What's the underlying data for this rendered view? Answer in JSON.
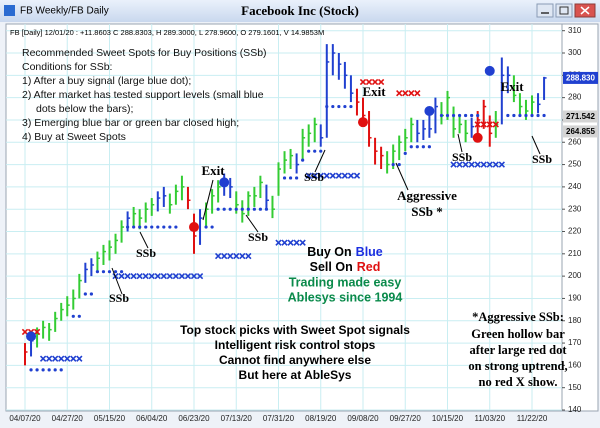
{
  "window_title": "FB Weekly/FB Daily",
  "chart_data": {
    "type": "ohlc",
    "title": "Facebook Inc (Stock)",
    "subtitle": "FB [Daily] 12/01/20 : +11.8603 C 288.8303, H 289.3000, L 278.9600, O 279.1601, V 14.9853M",
    "categories": [
      "04/07/20",
      null,
      null,
      null,
      null,
      null,
      null,
      "04/27/20",
      null,
      null,
      null,
      null,
      null,
      null,
      "05/15/20",
      null,
      null,
      null,
      null,
      null,
      null,
      "06/04/20",
      null,
      null,
      null,
      null,
      null,
      null,
      "06/23/20",
      null,
      null,
      null,
      null,
      null,
      null,
      "07/13/20",
      null,
      null,
      null,
      null,
      null,
      null,
      "07/31/20",
      null,
      null,
      null,
      null,
      null,
      null,
      "08/19/20",
      null,
      null,
      null,
      null,
      null,
      null,
      "09/08/20",
      null,
      null,
      null,
      null,
      null,
      null,
      "09/27/20",
      null,
      null,
      null,
      null,
      null,
      null,
      "10/15/20",
      null,
      null,
      null,
      null,
      null,
      null,
      "11/03/20",
      null,
      null,
      null,
      null,
      null,
      null,
      "11/22/20",
      null,
      null
    ],
    "ylim": [
      140,
      313
    ],
    "yticks": [
      140,
      150,
      160,
      170,
      180,
      190,
      200,
      210,
      220,
      230,
      240,
      250,
      260,
      270,
      280,
      290,
      300,
      310
    ],
    "grid": true,
    "grid_color": "#c9eef2",
    "bars": {
      "high": [
        170,
        174,
        177,
        180,
        179,
        184,
        188,
        191,
        194,
        201,
        206,
        208,
        211,
        214,
        216,
        219,
        225,
        229,
        231,
        230,
        233,
        235,
        238,
        240,
        237,
        241,
        245,
        240,
        228,
        230,
        233,
        239,
        243,
        246,
        244,
        238,
        234,
        238,
        240,
        245,
        241,
        236,
        251,
        256,
        257,
        255,
        266,
        268,
        271,
        268,
        304,
        304,
        300,
        296,
        290,
        284,
        280,
        274,
        262,
        258,
        256,
        259,
        263,
        266,
        271,
        270,
        270,
        272,
        280,
        278,
        283,
        276,
        272,
        270,
        271,
        274,
        279,
        272,
        274,
        298,
        294,
        290,
        282,
        279,
        281,
        282,
        289.3
      ],
      "low": [
        160,
        164,
        168,
        172,
        171,
        175,
        180,
        182,
        185,
        190,
        197,
        200,
        202,
        205,
        207,
        210,
        215,
        220,
        222,
        221,
        224,
        227,
        229,
        231,
        228,
        232,
        234,
        230,
        210,
        214,
        222,
        228,
        233,
        236,
        235,
        228,
        224,
        227,
        231,
        235,
        230,
        226,
        236,
        246,
        248,
        246,
        252,
        258,
        260,
        258,
        262,
        290,
        288,
        284,
        278,
        272,
        268,
        258,
        250,
        248,
        246,
        248,
        252,
        256,
        260,
        260,
        261,
        262,
        264,
        268,
        270,
        262,
        264,
        260,
        262,
        264,
        266,
        258,
        262,
        268,
        282,
        278,
        272,
        270,
        272,
        273,
        278.96
      ],
      "close": [
        166,
        171,
        174,
        177,
        176,
        181,
        185,
        187,
        190,
        198,
        203,
        205,
        208,
        211,
        213,
        216,
        222,
        226,
        228,
        226,
        230,
        232,
        235,
        236,
        232,
        238,
        240,
        234,
        218,
        226,
        230,
        236,
        240,
        242,
        240,
        232,
        228,
        236,
        236,
        242,
        234,
        230,
        248,
        252,
        254,
        250,
        262,
        264,
        268,
        262,
        296,
        300,
        295,
        290,
        282,
        278,
        272,
        262,
        256,
        254,
        250,
        256,
        260,
        262,
        268,
        264,
        266,
        266,
        276,
        272,
        280,
        266,
        268,
        264,
        267,
        270,
        276,
        264,
        268,
        290,
        290,
        281,
        276,
        274,
        278,
        277,
        288.83
      ],
      "colors": [
        "#e01010",
        "#2040d0",
        "#33cc33",
        "#33cc33",
        "#33cc33",
        "#33cc33",
        "#33cc33",
        "#33cc33",
        "#33cc33",
        "#33cc33",
        "#2040d0",
        "#2040d0",
        "#33cc33",
        "#33cc33",
        "#33cc33",
        "#33cc33",
        "#33cc33",
        "#2040d0",
        "#33cc33",
        "#33cc33",
        "#33cc33",
        "#33cc33",
        "#2040d0",
        "#2040d0",
        "#33cc33",
        "#33cc33",
        "#33cc33",
        "#e01010",
        "#e01010",
        "#2040d0",
        "#33cc33",
        "#33cc33",
        "#33cc33",
        "#2040d0",
        "#2040d0",
        "#33cc33",
        "#33cc33",
        "#33cc33",
        "#33cc33",
        "#33cc33",
        "#2040d0",
        "#33cc33",
        "#33cc33",
        "#33cc33",
        "#33cc33",
        "#2040d0",
        "#33cc33",
        "#33cc33",
        "#33cc33",
        "#2040d0",
        "#2040d0",
        "#2040d0",
        "#2040d0",
        "#2040d0",
        "#2040d0",
        "#e01010",
        "#e01010",
        "#e01010",
        "#e01010",
        "#e01010",
        "#33cc33",
        "#33cc33",
        "#33cc33",
        "#33cc33",
        "#33cc33",
        "#2040d0",
        "#2040d0",
        "#2040d0",
        "#2040d0",
        "#33cc33",
        "#33cc33",
        "#33cc33",
        "#33cc33",
        "#33cc33",
        "#2040d0",
        "#e01010",
        "#e01010",
        "#e01010",
        "#33cc33",
        "#2040d0",
        "#2040d0",
        "#33cc33",
        "#33cc33",
        "#33cc33",
        "#33cc33",
        "#2040d0",
        "#2040d0"
      ]
    },
    "support": {
      "color": "#2040d0",
      "values": [
        null,
        158,
        158,
        158,
        158,
        158,
        158,
        null,
        182,
        182,
        192,
        192,
        202,
        202,
        202,
        202,
        202,
        222,
        222,
        222,
        222,
        222,
        222,
        222,
        222,
        222,
        null,
        null,
        null,
        null,
        222,
        222,
        230,
        230,
        230,
        230,
        230,
        230,
        230,
        230,
        230,
        null,
        null,
        244,
        244,
        244,
        252,
        256,
        256,
        256,
        276,
        276,
        276,
        276,
        276,
        null,
        null,
        null,
        null,
        null,
        null,
        250,
        250,
        255,
        258,
        258,
        258,
        258,
        null,
        272,
        272,
        272,
        272,
        272,
        272,
        272,
        null,
        null,
        null,
        null,
        272,
        272,
        272,
        272,
        272,
        272,
        272
      ]
    },
    "blue_x": {
      "color": "#2040d0",
      "values": [
        null,
        null,
        null,
        163,
        163,
        163,
        163,
        163,
        163,
        163,
        null,
        null,
        null,
        null,
        null,
        200,
        200,
        200,
        200,
        200,
        200,
        200,
        200,
        200,
        200,
        200,
        200,
        200,
        200,
        200,
        null,
        null,
        209,
        209,
        209,
        209,
        209,
        209,
        null,
        null,
        null,
        null,
        215,
        215,
        215,
        215,
        215,
        245,
        245,
        245,
        245,
        245,
        245,
        245,
        245,
        245,
        null,
        null,
        null,
        null,
        null,
        null,
        null,
        null,
        null,
        null,
        null,
        null,
        null,
        null,
        null,
        250,
        250,
        250,
        250,
        250,
        250,
        250,
        250,
        250,
        null,
        null,
        null,
        null,
        null,
        null,
        null
      ]
    },
    "red_x": {
      "color": "#e01010",
      "values": [
        175,
        175,
        175,
        null,
        null,
        null,
        null,
        null,
        null,
        null,
        null,
        null,
        null,
        null,
        null,
        null,
        null,
        null,
        null,
        null,
        null,
        null,
        null,
        null,
        null,
        null,
        null,
        null,
        null,
        null,
        null,
        null,
        null,
        null,
        null,
        null,
        null,
        null,
        null,
        null,
        null,
        null,
        null,
        null,
        null,
        null,
        null,
        null,
        null,
        null,
        null,
        null,
        null,
        null,
        null,
        null,
        287,
        287,
        287,
        287,
        null,
        null,
        282,
        282,
        282,
        282,
        null,
        null,
        null,
        null,
        null,
        null,
        null,
        null,
        null,
        268,
        268,
        268,
        268,
        null,
        null,
        null,
        null,
        null,
        null,
        null,
        null
      ]
    },
    "buy_signal": {
      "color": "#2040d0",
      "values": [
        null,
        173,
        null,
        null,
        null,
        null,
        null,
        null,
        null,
        null,
        null,
        null,
        null,
        null,
        null,
        null,
        null,
        null,
        null,
        null,
        null,
        null,
        null,
        null,
        null,
        null,
        null,
        null,
        null,
        null,
        null,
        null,
        null,
        242,
        null,
        null,
        null,
        null,
        null,
        null,
        null,
        null,
        null,
        null,
        null,
        null,
        null,
        null,
        null,
        null,
        null,
        null,
        null,
        null,
        null,
        null,
        null,
        null,
        null,
        null,
        null,
        null,
        null,
        null,
        null,
        null,
        null,
        274,
        null,
        null,
        null,
        null,
        null,
        null,
        null,
        null,
        null,
        292,
        null,
        null,
        null,
        null,
        null,
        null,
        null,
        null,
        null
      ]
    },
    "sell_signal": {
      "color": "#e01010",
      "values": [
        null,
        null,
        null,
        null,
        null,
        null,
        null,
        null,
        null,
        null,
        null,
        null,
        null,
        null,
        null,
        null,
        null,
        null,
        null,
        null,
        null,
        null,
        null,
        null,
        null,
        null,
        null,
        null,
        222,
        null,
        null,
        null,
        null,
        null,
        null,
        null,
        null,
        null,
        null,
        null,
        null,
        null,
        null,
        null,
        null,
        null,
        null,
        null,
        null,
        null,
        null,
        null,
        null,
        null,
        null,
        null,
        269,
        null,
        null,
        null,
        null,
        null,
        null,
        null,
        null,
        null,
        null,
        null,
        null,
        null,
        null,
        null,
        null,
        null,
        null,
        262,
        null,
        null,
        null,
        null,
        null,
        null,
        null,
        null,
        null,
        null,
        null
      ]
    },
    "price_labels": [
      {
        "value": 288.83,
        "label": "288.830",
        "color": "#2040d0",
        "text_color": "#ffffff"
      },
      {
        "value": 271.542,
        "label": "271.542",
        "color": "#d4d4d4",
        "text_color": "#000000"
      },
      {
        "value": 264.855,
        "label": "264.855",
        "color": "#d4d4d4",
        "text_color": "#000000"
      }
    ],
    "annotations": {
      "conditions": [
        "Recommended Sweet Spots for Buy Positions (SSb)",
        "Conditions for SSb:",
        "1) After a buy signal (large blue dot);",
        "2) After market has tested support levels (small blue",
        "dots below the bars);",
        "3) Emerging blue bar or green bar closed high;",
        "4) Buy at Sweet Spots"
      ],
      "exit": [
        "Exit",
        "Exit",
        "Exit"
      ],
      "ssb": [
        "SSb",
        "SSb",
        "SSb",
        "SSb",
        "SSb",
        "SSb"
      ],
      "aggressive": [
        "Aggressive",
        "SSb *"
      ],
      "buy_on": "Buy On",
      "blue": "Blue",
      "sell_on": "Sell On",
      "red": "Red",
      "ad": [
        "Trading made easy",
        "Ablesys since 1994"
      ],
      "promo": [
        "Top stock picks with Sweet Spot signals",
        "Intelligent risk control stops",
        "Cannot find anywhere else",
        "But here at AbleSys"
      ],
      "footnote": [
        "*Aggressive SSb:",
        "Green hollow bar",
        "after large red dot",
        "on strong uptrend,",
        "no red X show."
      ]
    }
  }
}
